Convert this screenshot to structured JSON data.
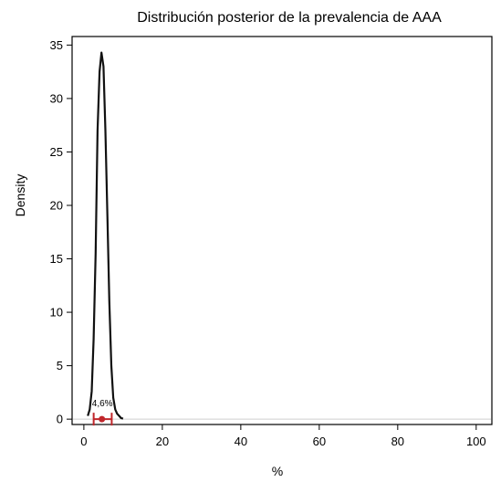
{
  "chart_data": {
    "type": "line",
    "title": "Distribución posterior de la prevalencia de AAA",
    "xlabel": "%",
    "ylabel": "Density",
    "xlim": [
      -3,
      104
    ],
    "ylim": [
      -0.5,
      35.8
    ],
    "xticks": [
      0,
      20,
      40,
      60,
      80,
      100
    ],
    "yticks": [
      0,
      5,
      10,
      15,
      20,
      25,
      30,
      35
    ],
    "xtick_labels": [
      "0",
      "20",
      "40",
      "60",
      "80",
      "100"
    ],
    "ytick_labels": [
      "0",
      "5",
      "10",
      "15",
      "20",
      "25",
      "30",
      "35"
    ],
    "grid": false,
    "legend": "none",
    "series": [
      {
        "color": "#111111",
        "x": [
          1.0,
          1.5,
          2.0,
          2.5,
          3.0,
          3.5,
          4.0,
          4.5,
          5.0,
          5.5,
          6.0,
          6.5,
          7.0,
          7.5,
          8.0,
          8.5,
          9.0,
          9.5,
          10.0
        ],
        "y": [
          0.3,
          0.9,
          2.6,
          7.5,
          15.5,
          27.0,
          32.5,
          34.3,
          33.0,
          27.0,
          19.0,
          11.0,
          5.0,
          2.0,
          0.9,
          0.5,
          0.3,
          0.1,
          0.05
        ]
      }
    ],
    "interval": {
      "color": "#c0262b",
      "estimate": 4.6,
      "lower": 2.5,
      "upper": 7.1,
      "y": 0,
      "label": "4,6%"
    },
    "reference_line": {
      "y": 0,
      "color": "#cfcfcf"
    }
  }
}
